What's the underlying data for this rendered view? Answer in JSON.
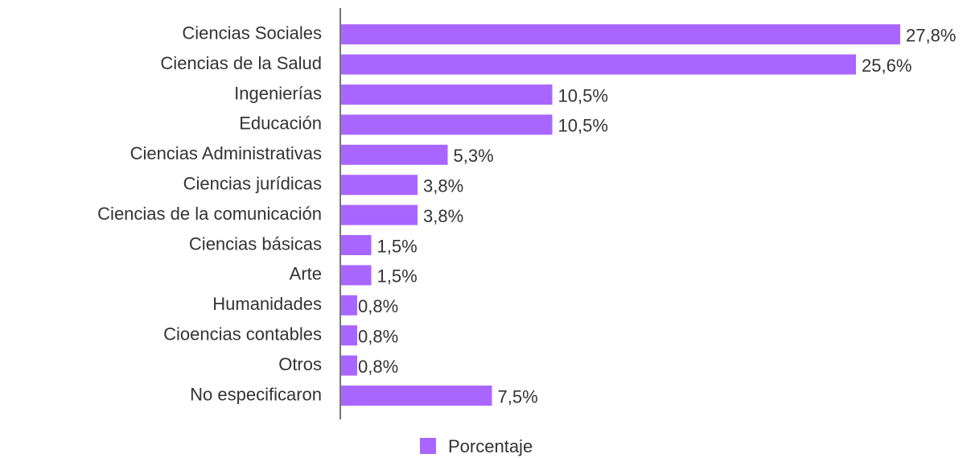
{
  "chart_data": {
    "type": "bar",
    "orientation": "horizontal",
    "categories": [
      "Ciencias Sociales",
      "Ciencias de la Salud",
      "Ingenierías",
      "Educación",
      "Ciencias Administrativas",
      "Ciencias jurídicas",
      "Ciencias de la comunicación",
      "Ciencias básicas",
      "Arte",
      "Humanidades",
      "Cioencias contables",
      "Otros",
      "No especificaron"
    ],
    "series": [
      {
        "name": "Porcentaje",
        "color": "#a966ff",
        "values": [
          27.8,
          25.6,
          10.5,
          10.5,
          5.3,
          3.8,
          3.8,
          1.5,
          1.5,
          0.8,
          0.8,
          0.8,
          7.5
        ],
        "value_labels": [
          "27,8%",
          "25,6%",
          "10,5%",
          "10,5%",
          "5,3%",
          "3,8%",
          "3,8%",
          "1,5%",
          "1,5%",
          "0,8%",
          "0,8%",
          "0,8%",
          "7,5%"
        ]
      }
    ],
    "legend": "bottom"
  }
}
